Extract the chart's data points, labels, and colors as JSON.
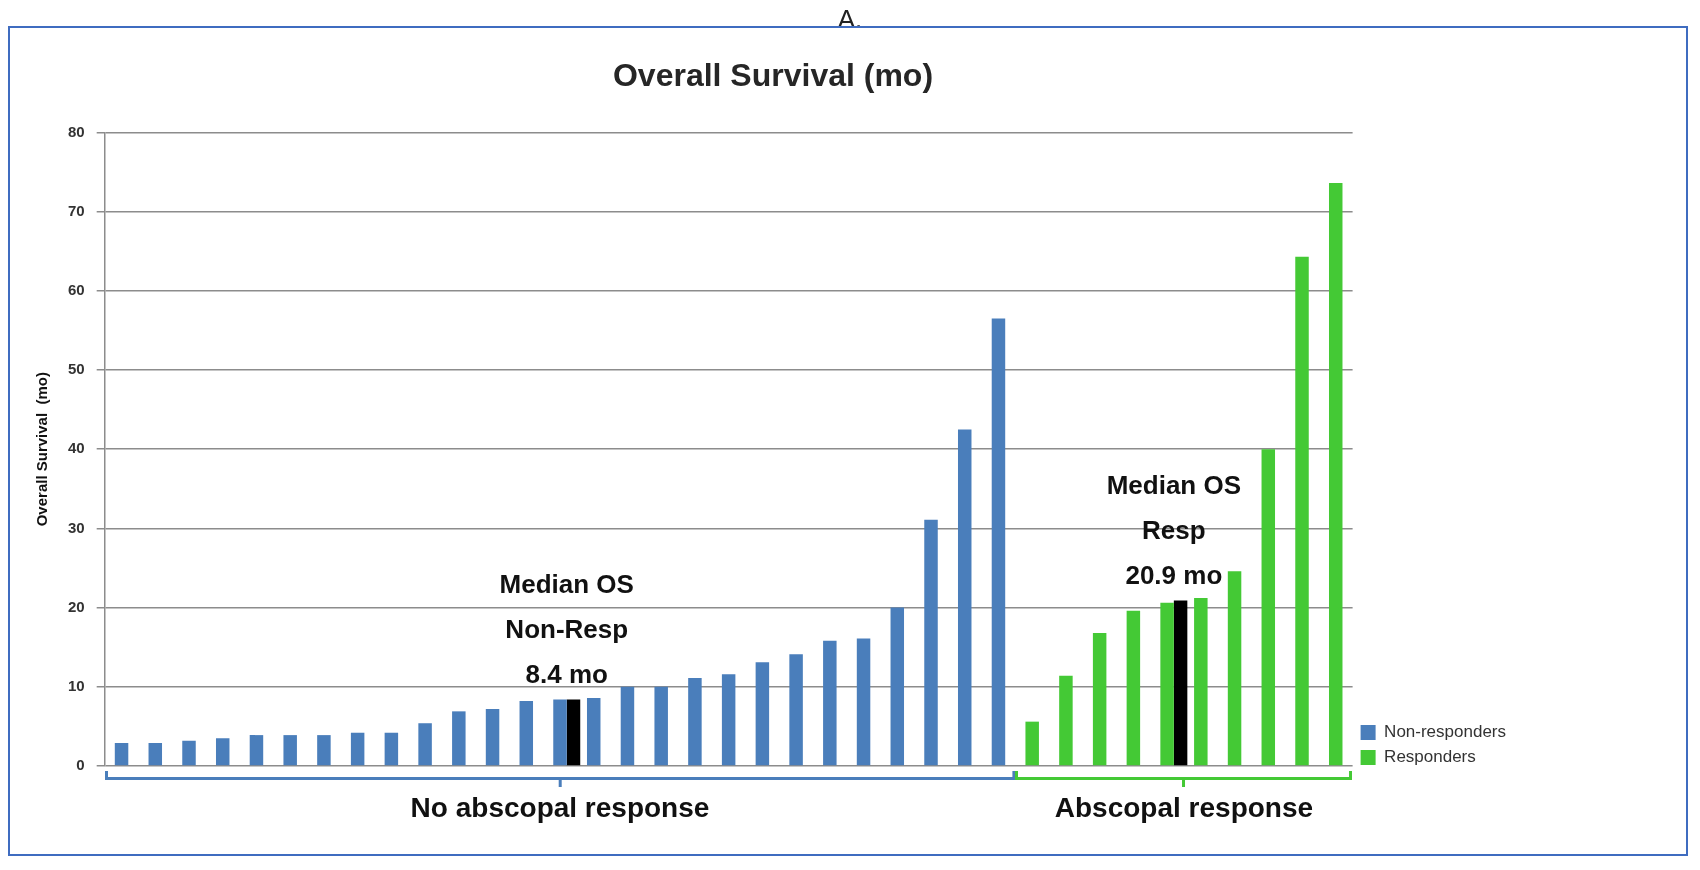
{
  "chart_data": {
    "type": "bar",
    "title": "Overall Survival (mo)",
    "subtitle": "A.",
    "ylabel": "Overall Survival  (mo)",
    "categories": [
      null,
      null,
      null,
      null,
      null,
      null,
      null,
      null,
      null,
      null,
      null,
      null,
      null,
      null,
      null,
      null,
      null,
      null,
      null,
      null,
      null,
      null,
      null,
      null,
      null,
      null,
      null,
      null,
      null,
      null,
      null,
      null,
      null,
      null,
      null,
      null,
      null
    ],
    "series": [
      {
        "name": "Non-responders",
        "color": "#4a7ebb",
        "values": [
          2.9,
          2.9,
          3.2,
          3.5,
          3.9,
          3.9,
          3.9,
          4.2,
          4.2,
          5.4,
          6.9,
          7.2,
          8.2,
          8.4,
          8.6,
          10.0,
          10.0,
          11.1,
          11.6,
          13.1,
          14.1,
          15.8,
          16.1,
          20.0,
          31.1,
          42.5,
          56.5,
          null,
          null,
          null,
          null,
          null,
          null,
          null,
          null,
          null,
          null
        ]
      },
      {
        "name": "Responders",
        "color": "#44c935",
        "values": [
          null,
          null,
          null,
          null,
          null,
          null,
          null,
          null,
          null,
          null,
          null,
          null,
          null,
          null,
          null,
          null,
          null,
          null,
          null,
          null,
          null,
          null,
          null,
          null,
          null,
          null,
          null,
          5.6,
          11.4,
          16.8,
          19.6,
          20.6,
          21.2,
          24.6,
          40.0,
          64.3,
          73.6
        ]
      },
      {
        "color": "#000000",
        "values": [
          null,
          null,
          null,
          null,
          null,
          null,
          null,
          null,
          null,
          null,
          null,
          null,
          null,
          8.4,
          null,
          null,
          null,
          null,
          null,
          null,
          null,
          null,
          null,
          null,
          null,
          null,
          null,
          null,
          null,
          null,
          null,
          20.9,
          null,
          null,
          null,
          null,
          null
        ]
      }
    ],
    "annotations": [
      "Median OS\nNon-Resp\n8.4 mo",
      "Median OS\nResp\n20.9 mo",
      "No abscopal response",
      "Abscopal response"
    ],
    "ylim": [
      0,
      80
    ],
    "yticks": [
      0,
      10,
      20,
      30,
      40,
      50,
      60,
      70,
      80
    ],
    "grid": "y",
    "legend": "right",
    "tick_labels": "y"
  }
}
